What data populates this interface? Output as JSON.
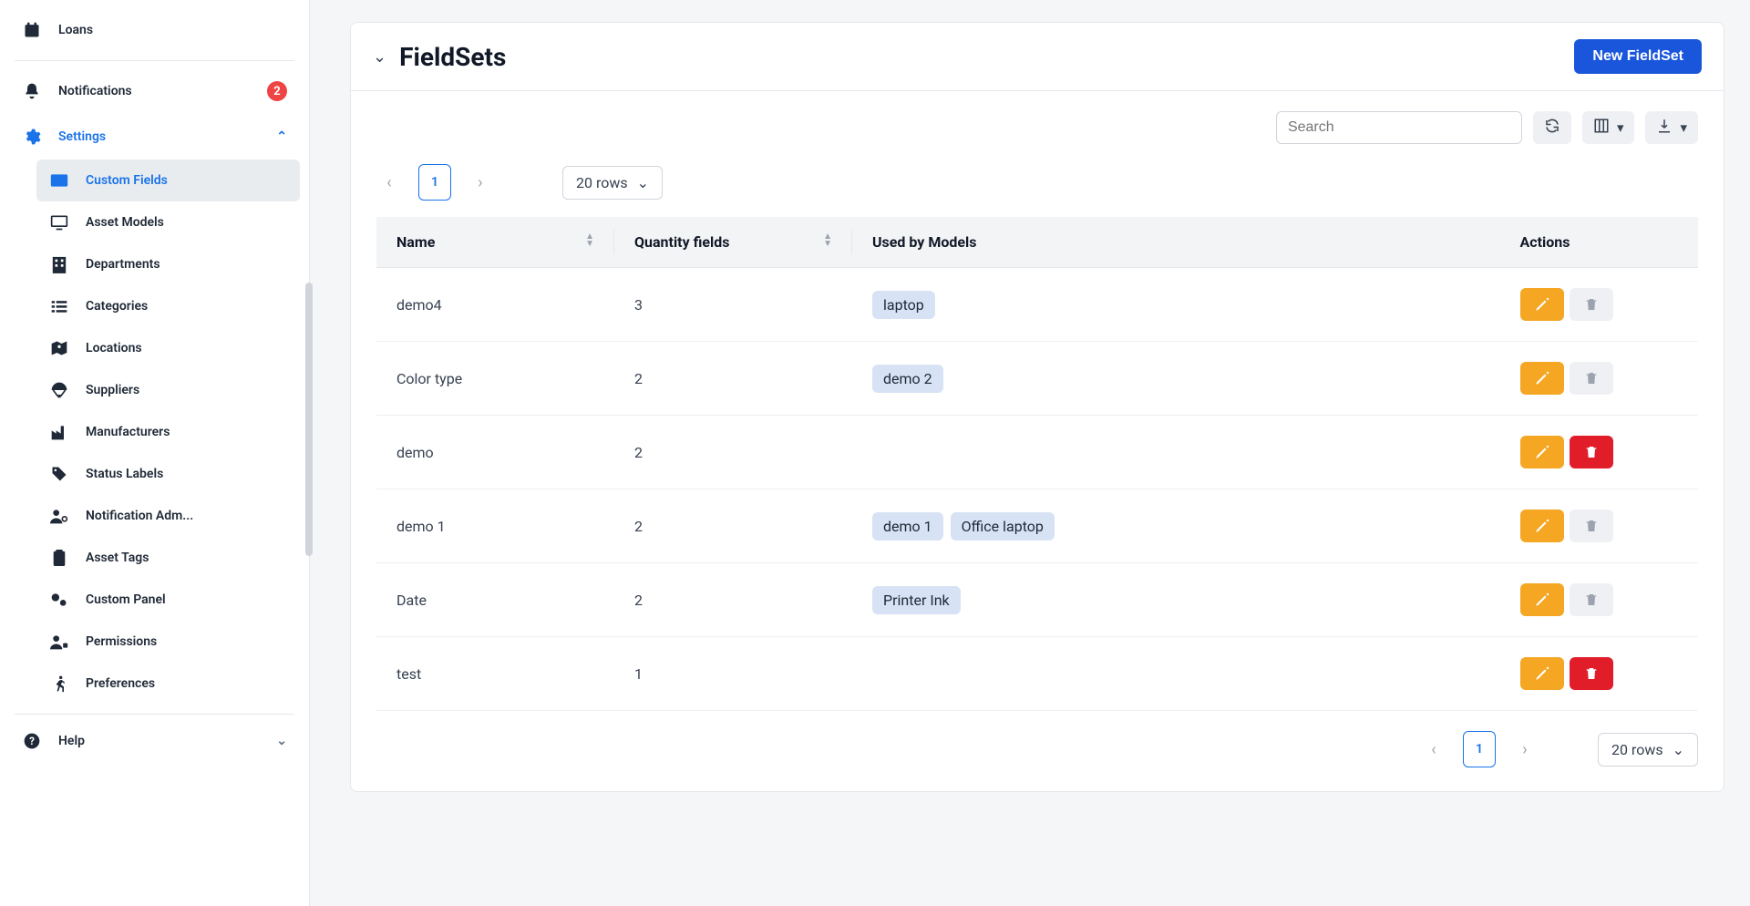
{
  "sidebar": {
    "loans": "Loans",
    "notifications": "Notifications",
    "notifications_badge": "2",
    "settings": "Settings",
    "sub": {
      "custom_fields": "Custom Fields",
      "asset_models": "Asset Models",
      "departments": "Departments",
      "categories": "Categories",
      "locations": "Locations",
      "suppliers": "Suppliers",
      "manufacturers": "Manufacturers",
      "status_labels": "Status Labels",
      "notification_admin": "Notification Adm...",
      "asset_tags": "Asset Tags",
      "custom_panel": "Custom Panel",
      "permissions": "Permissions",
      "preferences": "Preferences"
    },
    "help": "Help"
  },
  "panel": {
    "title": "FieldSets",
    "new_btn": "New FieldSet",
    "search_placeholder": "Search",
    "page_current": "1",
    "rows_label": "20 rows"
  },
  "columns": {
    "name": "Name",
    "qty": "Quantity fields",
    "used_by": "Used by Models",
    "actions": "Actions"
  },
  "rows": [
    {
      "name": "demo4",
      "qty": "3",
      "models": [
        "laptop"
      ],
      "deletable": false
    },
    {
      "name": "Color type",
      "qty": "2",
      "models": [
        "demo 2"
      ],
      "deletable": false
    },
    {
      "name": "demo",
      "qty": "2",
      "models": [],
      "deletable": true
    },
    {
      "name": "demo 1",
      "qty": "2",
      "models": [
        "demo 1",
        "Office laptop"
      ],
      "deletable": false
    },
    {
      "name": "Date",
      "qty": "2",
      "models": [
        "Printer Ink"
      ],
      "deletable": false
    },
    {
      "name": "test",
      "qty": "1",
      "models": [],
      "deletable": true
    }
  ]
}
